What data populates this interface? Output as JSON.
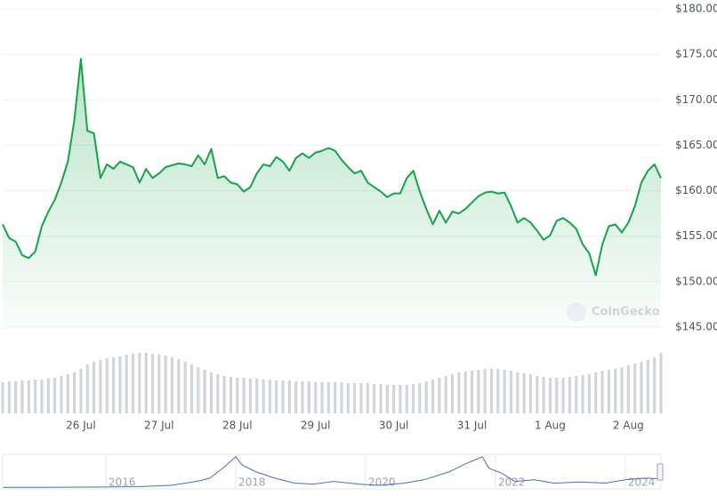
{
  "chart_data": {
    "type": "line",
    "categories": [
      null,
      null,
      null,
      null,
      null,
      null,
      null,
      null,
      null,
      null,
      null,
      null,
      "26 Jul",
      null,
      null,
      null,
      null,
      null,
      null,
      null,
      null,
      null,
      null,
      null,
      "27 Jul",
      null,
      null,
      null,
      null,
      null,
      null,
      null,
      null,
      null,
      null,
      null,
      "28 Jul",
      null,
      null,
      null,
      null,
      null,
      null,
      null,
      null,
      null,
      null,
      null,
      "29 Jul",
      null,
      null,
      null,
      null,
      null,
      null,
      null,
      null,
      null,
      null,
      null,
      "30 Jul",
      null,
      null,
      null,
      null,
      null,
      null,
      null,
      null,
      null,
      null,
      null,
      "31 Jul",
      null,
      null,
      null,
      null,
      null,
      null,
      null,
      null,
      null,
      null,
      null,
      "1 Aug",
      null,
      null,
      null,
      null,
      null,
      null,
      null,
      null,
      null,
      null,
      null,
      "2 Aug",
      null,
      null,
      null,
      null,
      null
    ],
    "values": [
      156.3,
      154.8,
      154.4,
      152.9,
      152.6,
      153.3,
      156.1,
      157.7,
      159.0,
      160.9,
      163.2,
      167.8,
      174.5,
      166.6,
      166.3,
      161.4,
      162.9,
      162.4,
      163.2,
      162.9,
      162.6,
      160.9,
      162.4,
      161.4,
      161.9,
      162.6,
      162.8,
      163.0,
      162.9,
      162.7,
      163.9,
      162.9,
      164.6,
      161.4,
      161.6,
      160.9,
      160.7,
      159.9,
      160.4,
      161.9,
      162.9,
      162.7,
      163.7,
      163.2,
      162.2,
      163.6,
      164.1,
      163.6,
      164.2,
      164.4,
      164.7,
      164.4,
      163.4,
      162.6,
      161.9,
      162.2,
      160.9,
      160.4,
      159.9,
      159.3,
      159.7,
      159.7,
      161.4,
      162.2,
      159.9,
      158.0,
      156.3,
      157.8,
      156.5,
      157.7,
      157.5,
      158.0,
      158.7,
      159.4,
      159.8,
      159.9,
      159.7,
      159.8,
      158.3,
      156.5,
      157.0,
      156.5,
      155.6,
      154.6,
      155.1,
      156.7,
      157.0,
      156.5,
      155.8,
      154.1,
      153.1,
      150.7,
      154.1,
      156.1,
      156.3,
      155.4,
      156.5,
      158.3,
      160.9,
      162.2,
      162.9,
      161.4
    ],
    "color": "#16a34a",
    "ylim": [
      145,
      180
    ],
    "yticks": [
      {
        "value": 145,
        "label": "$145.00"
      },
      {
        "value": 150,
        "label": "$150.00"
      },
      {
        "value": 155,
        "label": "$155.00"
      },
      {
        "value": 160,
        "label": "$160.00"
      },
      {
        "value": 165,
        "label": "$165.00"
      },
      {
        "value": 170,
        "label": "$170.00"
      },
      {
        "value": 175,
        "label": "$175.00"
      },
      {
        "value": 180,
        "label": "$180.00"
      }
    ],
    "grid": true,
    "volume": [
      35,
      36,
      36,
      37,
      37,
      38,
      38,
      39,
      40,
      42,
      44,
      46,
      50,
      55,
      58,
      60,
      62,
      63,
      64,
      66,
      67,
      68,
      68,
      67,
      66,
      65,
      63,
      61,
      58,
      55,
      52,
      49,
      46,
      44,
      42,
      41,
      40,
      40,
      39,
      39,
      38,
      38,
      37,
      37,
      37,
      36,
      36,
      36,
      35,
      35,
      35,
      35,
      35,
      34,
      34,
      34,
      34,
      33,
      33,
      32,
      32,
      32,
      32,
      33,
      34,
      36,
      38,
      40,
      42,
      44,
      46,
      47,
      48,
      49,
      50,
      50,
      50,
      49,
      48,
      46,
      45,
      44,
      42,
      41,
      40,
      40,
      40,
      41,
      42,
      43,
      44,
      46,
      48,
      49,
      50,
      52,
      54,
      56,
      58,
      60,
      63,
      68
    ],
    "volume_color": "#d1d5db",
    "volume_lim": [
      0,
      100
    ],
    "watermark": "CoinGecko",
    "overview": {
      "x": [
        2014.41,
        2015,
        2016,
        2016.5,
        2017,
        2017.4,
        2017.6,
        2017.8,
        2018.0,
        2018.1,
        2018.3,
        2018.6,
        2018.9,
        2019.2,
        2019.5,
        2019.9,
        2020.2,
        2020.6,
        2020.9,
        2021.3,
        2021.5,
        2021.8,
        2021.9,
        2022.1,
        2022.3,
        2022.6,
        2022.9,
        2023.3,
        2023.7,
        2024.0,
        2024.3,
        2024.55
      ],
      "values": [
        2,
        2,
        3,
        4,
        8,
        20,
        30,
        60,
        95,
        70,
        50,
        30,
        15,
        12,
        20,
        12,
        8,
        15,
        25,
        50,
        70,
        95,
        60,
        45,
        20,
        25,
        15,
        18,
        15,
        25,
        30,
        28
      ],
      "color": "#4a6fb5",
      "xlim": [
        2014.41,
        2024.55
      ],
      "ylim": [
        0,
        100
      ],
      "xticks": [
        2016,
        2018,
        2020,
        2022,
        2024
      ]
    }
  }
}
